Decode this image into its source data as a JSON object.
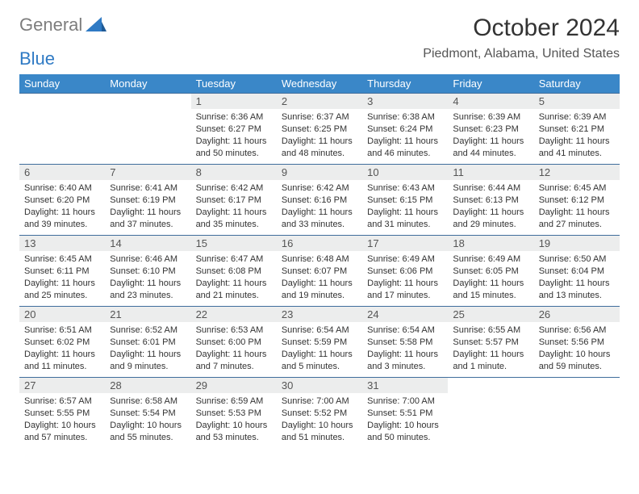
{
  "logo": {
    "word1": "General",
    "word2": "Blue"
  },
  "title": "October 2024",
  "location": "Piedmont, Alabama, United States",
  "accent_color": "#3a87c8",
  "day_headers": [
    "Sunday",
    "Monday",
    "Tuesday",
    "Wednesday",
    "Thursday",
    "Friday",
    "Saturday"
  ],
  "weeks": [
    [
      null,
      null,
      {
        "n": "1",
        "sr": "Sunrise: 6:36 AM",
        "ss": "Sunset: 6:27 PM",
        "dl": "Daylight: 11 hours and 50 minutes."
      },
      {
        "n": "2",
        "sr": "Sunrise: 6:37 AM",
        "ss": "Sunset: 6:25 PM",
        "dl": "Daylight: 11 hours and 48 minutes."
      },
      {
        "n": "3",
        "sr": "Sunrise: 6:38 AM",
        "ss": "Sunset: 6:24 PM",
        "dl": "Daylight: 11 hours and 46 minutes."
      },
      {
        "n": "4",
        "sr": "Sunrise: 6:39 AM",
        "ss": "Sunset: 6:23 PM",
        "dl": "Daylight: 11 hours and 44 minutes."
      },
      {
        "n": "5",
        "sr": "Sunrise: 6:39 AM",
        "ss": "Sunset: 6:21 PM",
        "dl": "Daylight: 11 hours and 41 minutes."
      }
    ],
    [
      {
        "n": "6",
        "sr": "Sunrise: 6:40 AM",
        "ss": "Sunset: 6:20 PM",
        "dl": "Daylight: 11 hours and 39 minutes."
      },
      {
        "n": "7",
        "sr": "Sunrise: 6:41 AM",
        "ss": "Sunset: 6:19 PM",
        "dl": "Daylight: 11 hours and 37 minutes."
      },
      {
        "n": "8",
        "sr": "Sunrise: 6:42 AM",
        "ss": "Sunset: 6:17 PM",
        "dl": "Daylight: 11 hours and 35 minutes."
      },
      {
        "n": "9",
        "sr": "Sunrise: 6:42 AM",
        "ss": "Sunset: 6:16 PM",
        "dl": "Daylight: 11 hours and 33 minutes."
      },
      {
        "n": "10",
        "sr": "Sunrise: 6:43 AM",
        "ss": "Sunset: 6:15 PM",
        "dl": "Daylight: 11 hours and 31 minutes."
      },
      {
        "n": "11",
        "sr": "Sunrise: 6:44 AM",
        "ss": "Sunset: 6:13 PM",
        "dl": "Daylight: 11 hours and 29 minutes."
      },
      {
        "n": "12",
        "sr": "Sunrise: 6:45 AM",
        "ss": "Sunset: 6:12 PM",
        "dl": "Daylight: 11 hours and 27 minutes."
      }
    ],
    [
      {
        "n": "13",
        "sr": "Sunrise: 6:45 AM",
        "ss": "Sunset: 6:11 PM",
        "dl": "Daylight: 11 hours and 25 minutes."
      },
      {
        "n": "14",
        "sr": "Sunrise: 6:46 AM",
        "ss": "Sunset: 6:10 PM",
        "dl": "Daylight: 11 hours and 23 minutes."
      },
      {
        "n": "15",
        "sr": "Sunrise: 6:47 AM",
        "ss": "Sunset: 6:08 PM",
        "dl": "Daylight: 11 hours and 21 minutes."
      },
      {
        "n": "16",
        "sr": "Sunrise: 6:48 AM",
        "ss": "Sunset: 6:07 PM",
        "dl": "Daylight: 11 hours and 19 minutes."
      },
      {
        "n": "17",
        "sr": "Sunrise: 6:49 AM",
        "ss": "Sunset: 6:06 PM",
        "dl": "Daylight: 11 hours and 17 minutes."
      },
      {
        "n": "18",
        "sr": "Sunrise: 6:49 AM",
        "ss": "Sunset: 6:05 PM",
        "dl": "Daylight: 11 hours and 15 minutes."
      },
      {
        "n": "19",
        "sr": "Sunrise: 6:50 AM",
        "ss": "Sunset: 6:04 PM",
        "dl": "Daylight: 11 hours and 13 minutes."
      }
    ],
    [
      {
        "n": "20",
        "sr": "Sunrise: 6:51 AM",
        "ss": "Sunset: 6:02 PM",
        "dl": "Daylight: 11 hours and 11 minutes."
      },
      {
        "n": "21",
        "sr": "Sunrise: 6:52 AM",
        "ss": "Sunset: 6:01 PM",
        "dl": "Daylight: 11 hours and 9 minutes."
      },
      {
        "n": "22",
        "sr": "Sunrise: 6:53 AM",
        "ss": "Sunset: 6:00 PM",
        "dl": "Daylight: 11 hours and 7 minutes."
      },
      {
        "n": "23",
        "sr": "Sunrise: 6:54 AM",
        "ss": "Sunset: 5:59 PM",
        "dl": "Daylight: 11 hours and 5 minutes."
      },
      {
        "n": "24",
        "sr": "Sunrise: 6:54 AM",
        "ss": "Sunset: 5:58 PM",
        "dl": "Daylight: 11 hours and 3 minutes."
      },
      {
        "n": "25",
        "sr": "Sunrise: 6:55 AM",
        "ss": "Sunset: 5:57 PM",
        "dl": "Daylight: 11 hours and 1 minute."
      },
      {
        "n": "26",
        "sr": "Sunrise: 6:56 AM",
        "ss": "Sunset: 5:56 PM",
        "dl": "Daylight: 10 hours and 59 minutes."
      }
    ],
    [
      {
        "n": "27",
        "sr": "Sunrise: 6:57 AM",
        "ss": "Sunset: 5:55 PM",
        "dl": "Daylight: 10 hours and 57 minutes."
      },
      {
        "n": "28",
        "sr": "Sunrise: 6:58 AM",
        "ss": "Sunset: 5:54 PM",
        "dl": "Daylight: 10 hours and 55 minutes."
      },
      {
        "n": "29",
        "sr": "Sunrise: 6:59 AM",
        "ss": "Sunset: 5:53 PM",
        "dl": "Daylight: 10 hours and 53 minutes."
      },
      {
        "n": "30",
        "sr": "Sunrise: 7:00 AM",
        "ss": "Sunset: 5:52 PM",
        "dl": "Daylight: 10 hours and 51 minutes."
      },
      {
        "n": "31",
        "sr": "Sunrise: 7:00 AM",
        "ss": "Sunset: 5:51 PM",
        "dl": "Daylight: 10 hours and 50 minutes."
      },
      null,
      null
    ]
  ]
}
